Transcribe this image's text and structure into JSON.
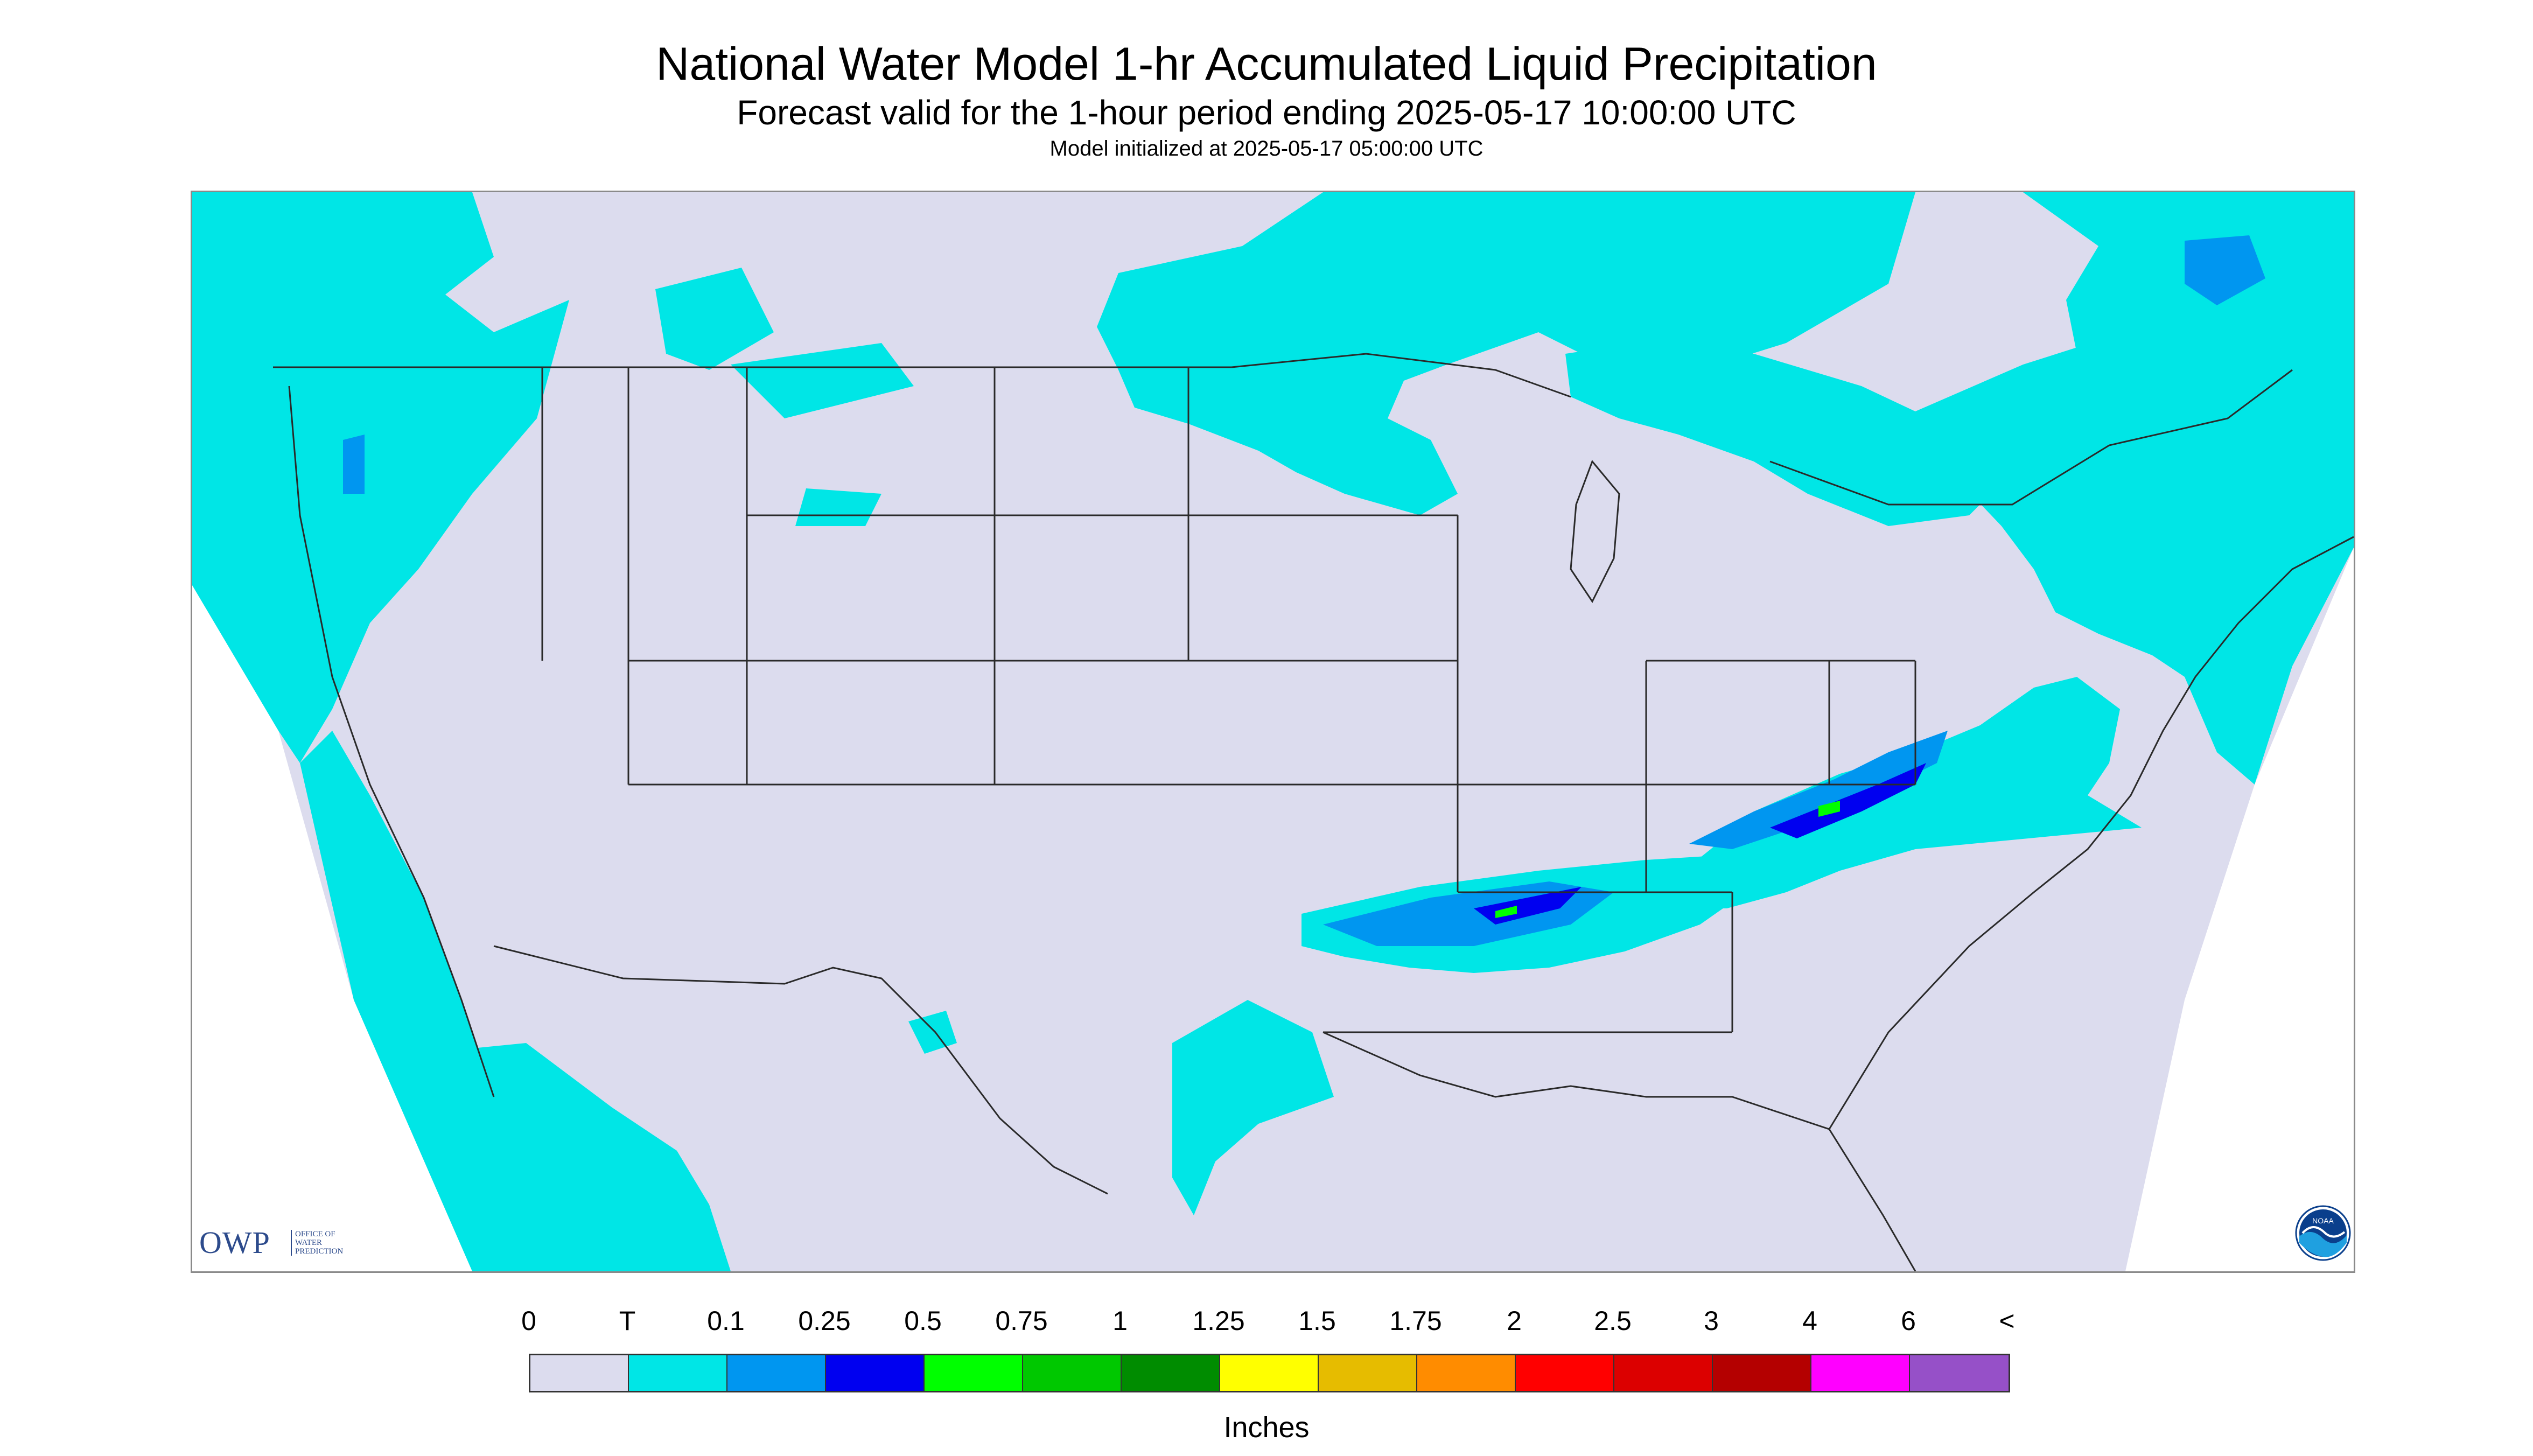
{
  "title": "National Water Model 1-hr Accumulated Liquid Precipitation",
  "subtitle": "Forecast valid for the 1-hour period ending 2025-05-17 10:00:00 UTC",
  "init_line": "Model initialized at 2025-05-17 05:00:00 UTC",
  "logos": {
    "owp": "OWP",
    "owp_sub": [
      "OFFICE OF",
      "WATER",
      "PREDICTION"
    ],
    "noaa": "NOAA"
  },
  "legend": {
    "tick_labels": [
      "0",
      "T",
      "0.1",
      "0.25",
      "0.5",
      "0.75",
      "1",
      "1.25",
      "1.5",
      "1.75",
      "2",
      "2.5",
      "3",
      "4",
      "6",
      "<"
    ],
    "colors": [
      "#dcdcee",
      "#00e6e6",
      "#0096f0",
      "#0000f0",
      "#00ff00",
      "#00c800",
      "#008c00",
      "#ffff00",
      "#e6bc00",
      "#ff8c00",
      "#ff0000",
      "#dc0000",
      "#b40000",
      "#ff00ff",
      "#9650c8"
    ],
    "units": "Inches"
  },
  "colors": {
    "background": "#dcdcee",
    "trace": "#00e6e6",
    "light": "#0096f0",
    "moderate": "#0000f0",
    "heavy": "#00ff00",
    "borders": "#2a2a2a",
    "outside_domain": "#ffffff"
  }
}
